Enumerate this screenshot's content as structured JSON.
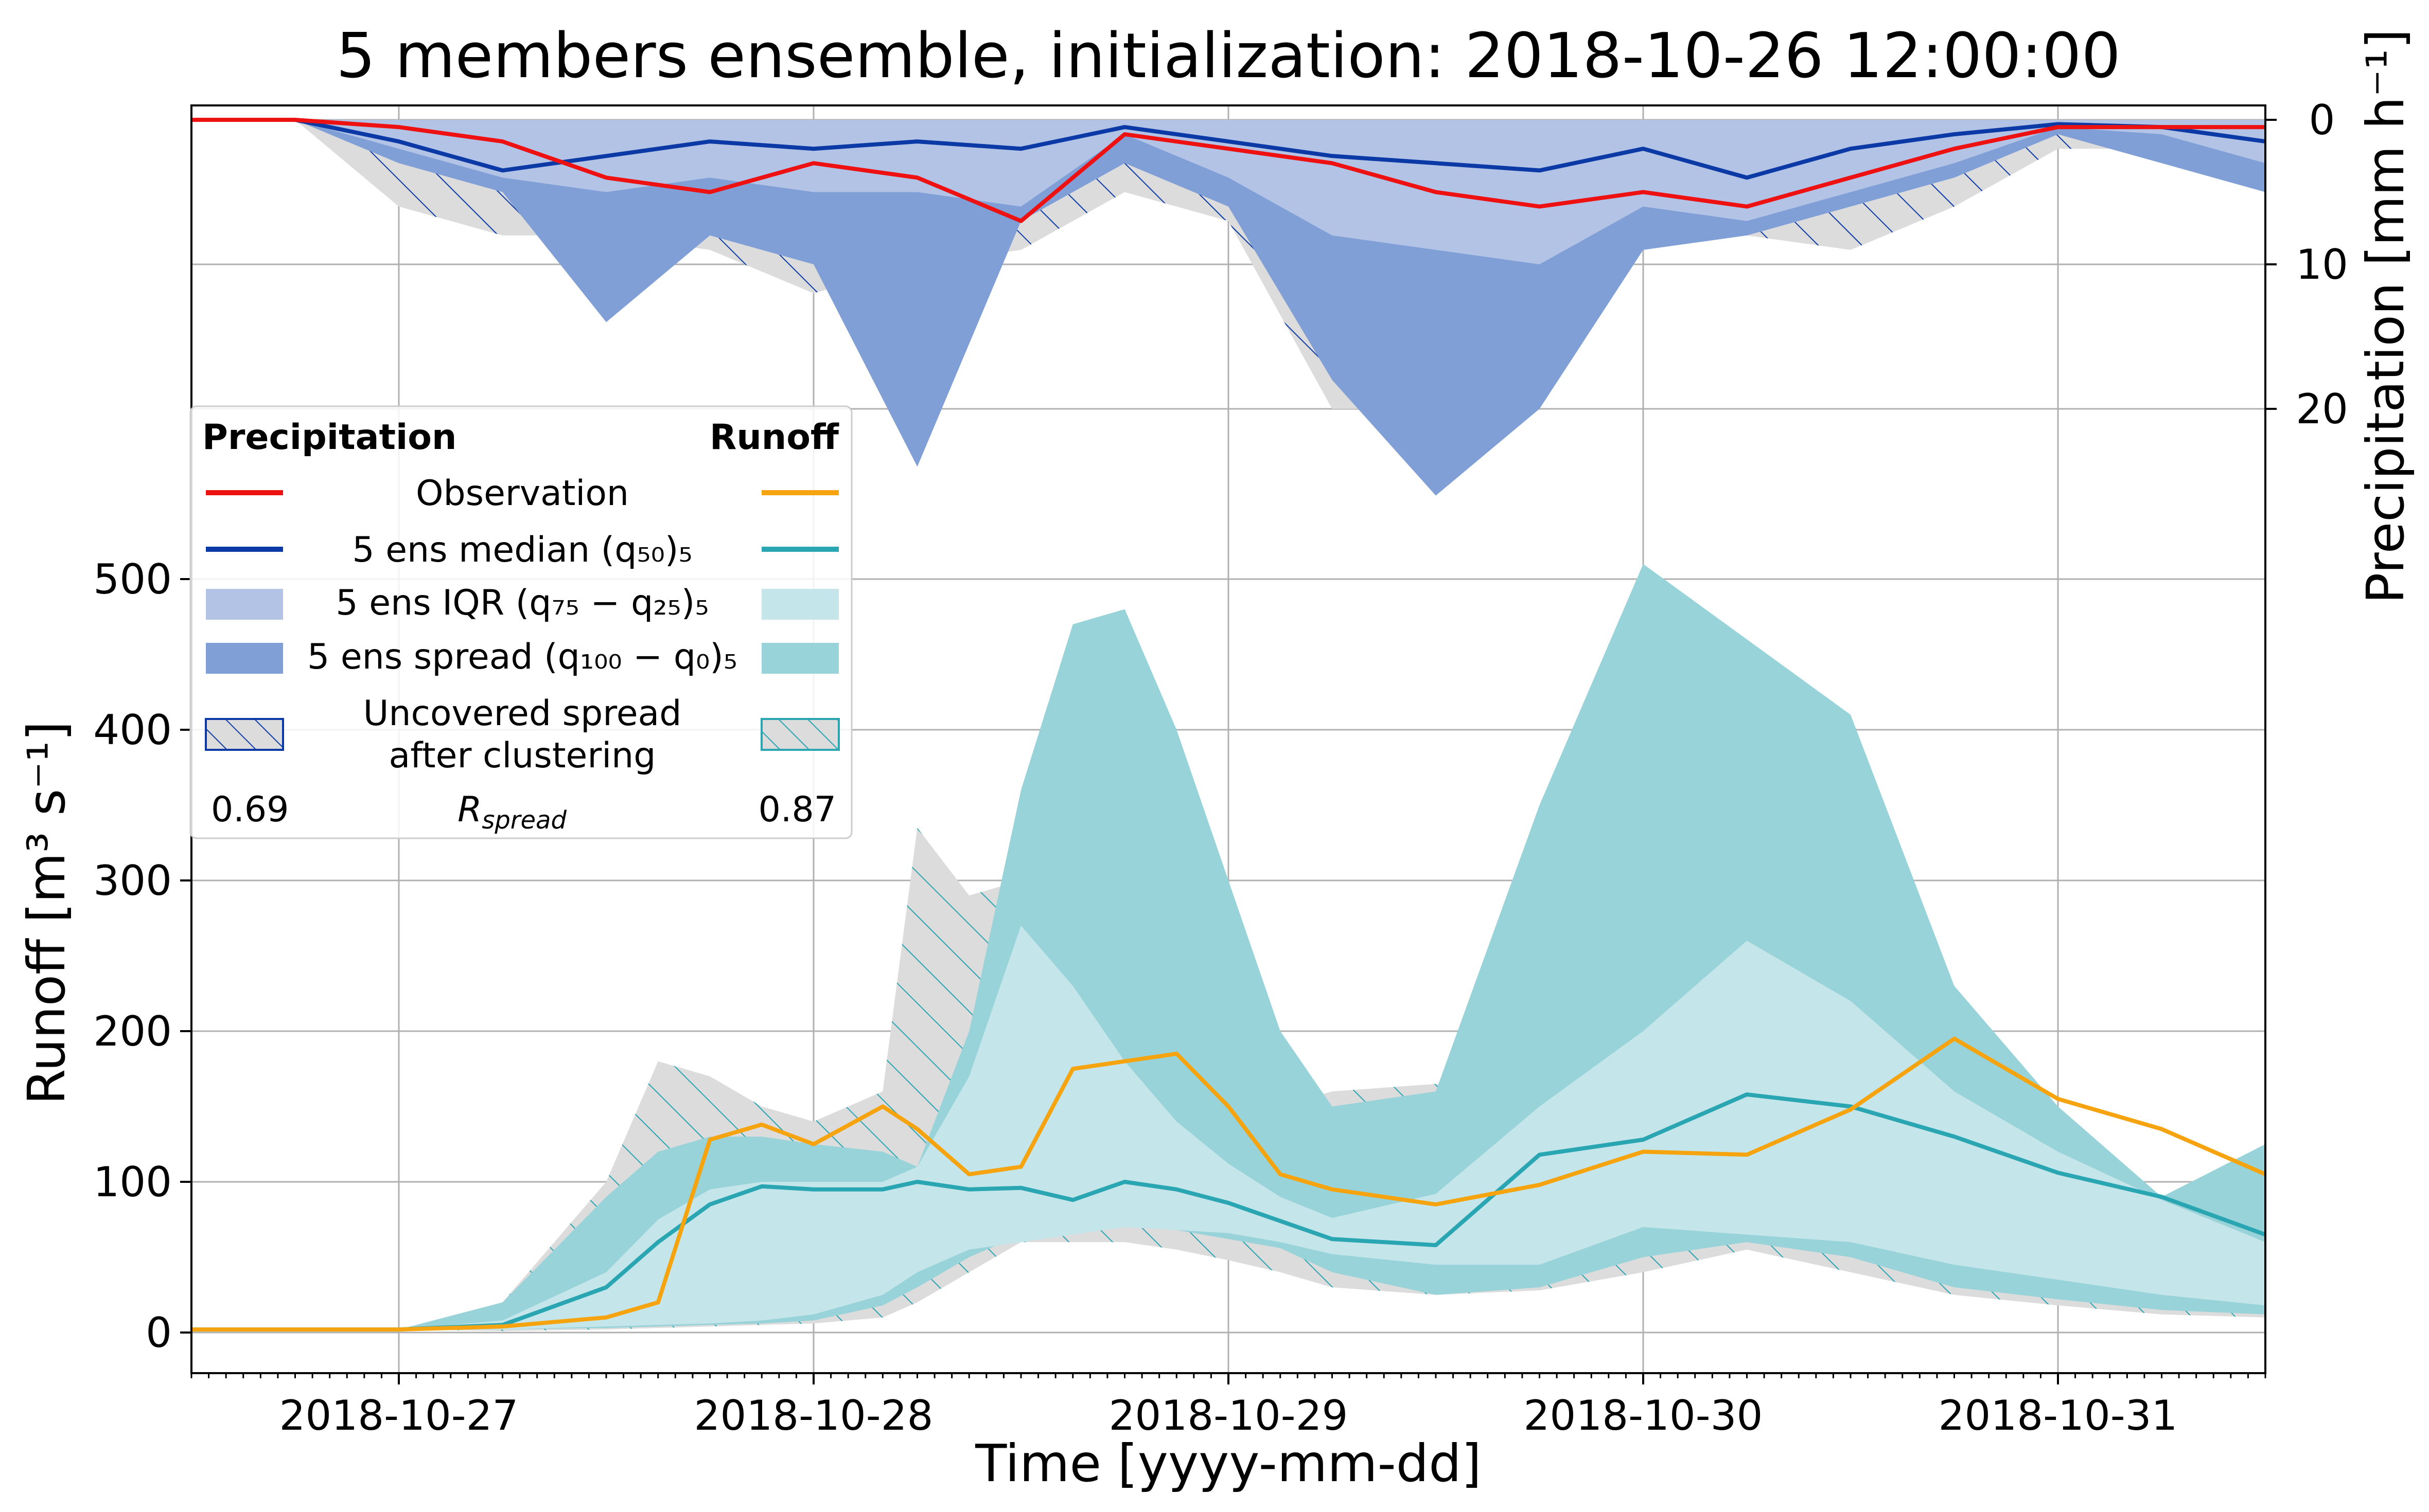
{
  "chart_data": {
    "type": "area",
    "title": "5 members ensemble, initialization: 2018-10-26 12:00:00",
    "xlabel": "Time [yyyy-mm-dd]",
    "ylabel": "Runoff [m$^3$ s$^{-1}$]",
    "ylabel_display": "Runoff [m³ s⁻¹]",
    "ylabel_right": "Precipitation [mm h⁻¹]",
    "x_range": [
      "2018-10-26 12:00",
      "2018-10-31 12:00"
    ],
    "x_ticks": [
      "2018-10-27",
      "2018-10-28",
      "2018-10-29",
      "2018-10-30",
      "2018-10-31"
    ],
    "runoff_ylim": [
      -25,
      525
    ],
    "runoff_yticks": [
      0,
      100,
      200,
      300,
      400,
      500
    ],
    "precip_ylim_inverted": [
      -1.5,
      20
    ],
    "precip_yticks": [
      0,
      10,
      20
    ],
    "grid": true,
    "legend": {
      "placement": "left",
      "col_header_left": "Precipitation",
      "col_header_right": "Runoff",
      "rows": [
        "Observation",
        "5 ens median $(q_{50})_5$",
        "5 ens IQR $(q_{75}-q_{25})_5$",
        "5 ens spread $(q_{100}-q_0)_5$",
        "Uncovered spread after clustering"
      ],
      "rows_display": [
        "Observation",
        "5 ens median (q₅₀)₅",
        "5 ens IQR (q₇₅ − q₂₅)₅",
        "5 ens spread (q₁₀₀ − q₀)₅",
        "Uncovered spread\nafter clustering"
      ],
      "r_spread_label": "R_spread",
      "r_spread_left": "0.69",
      "r_spread_right": "0.87"
    },
    "colors": {
      "precip_obs": "#ee1111",
      "precip_median": "#0b3aa6",
      "precip_iqr": "#b3c3e6",
      "precip_spread": "#7f9fd6",
      "runoff_obs": "#f5a40f",
      "runoff_median": "#2aa6b2",
      "runoff_iqr": "#c4e6ea",
      "runoff_spread": "#97d3d9",
      "uncovered_fill": "#dcdcdc"
    },
    "precip_hours": [
      0,
      6,
      12,
      18,
      24,
      30,
      36,
      42,
      48,
      54,
      60,
      66,
      72,
      78,
      84,
      90,
      96,
      102,
      108,
      114,
      120
    ],
    "precip": {
      "observation": [
        0,
        0,
        0.5,
        1.5,
        4,
        5,
        3,
        4,
        7,
        1,
        2,
        3,
        5,
        6,
        5,
        6,
        4,
        2,
        0.5,
        0.5,
        0.5
      ],
      "median": [
        0,
        0,
        1.5,
        3.5,
        2.5,
        1.5,
        2,
        1.5,
        2,
        0.5,
        1.5,
        2.5,
        3,
        3.5,
        2,
        4,
        2,
        1,
        0.3,
        0.5,
        1.5
      ],
      "iqr_upper": [
        0,
        0,
        2,
        4,
        5,
        4,
        5,
        5,
        6,
        1,
        4,
        8,
        9,
        10,
        6,
        7,
        5,
        3,
        0.5,
        1,
        3
      ],
      "spread_upper": [
        0,
        0,
        3,
        5,
        14,
        8,
        10,
        24,
        7,
        3,
        6,
        18,
        26,
        20,
        9,
        8,
        6,
        4,
        1,
        3,
        5
      ],
      "uncovered_upper": [
        0,
        0,
        6,
        8,
        8,
        9,
        12,
        10,
        9,
        5,
        7,
        20,
        20,
        9,
        9,
        8,
        9,
        6,
        2,
        2,
        2
      ]
    },
    "runoff_hours": [
      0,
      6,
      12,
      18,
      24,
      27,
      30,
      33,
      36,
      40,
      42,
      45,
      48,
      51,
      54,
      57,
      60,
      63,
      66,
      72,
      78,
      84,
      90,
      96,
      102,
      108,
      114,
      120
    ],
    "runoff": {
      "observation": [
        2,
        2,
        2,
        4,
        10,
        20,
        128,
        138,
        125,
        150,
        135,
        105,
        110,
        175,
        180,
        185,
        150,
        105,
        95,
        85,
        98,
        120,
        118,
        148,
        195,
        155,
        135,
        105
      ],
      "median": [
        2,
        2,
        2,
        5,
        30,
        60,
        85,
        97,
        95,
        95,
        100,
        95,
        96,
        88,
        100,
        95,
        86,
        74,
        62,
        58,
        118,
        128,
        158,
        150,
        130,
        106,
        90,
        65
      ],
      "iqr_lower": [
        2,
        2,
        2,
        2,
        4,
        5,
        6,
        8,
        12,
        25,
        40,
        55,
        60,
        65,
        70,
        68,
        66,
        60,
        52,
        45,
        45,
        70,
        65,
        60,
        45,
        35,
        25,
        18
      ],
      "iqr_upper": [
        2,
        2,
        2,
        8,
        40,
        75,
        95,
        100,
        100,
        100,
        110,
        170,
        270,
        230,
        180,
        140,
        112,
        90,
        76,
        92,
        150,
        200,
        260,
        220,
        160,
        120,
        88,
        60
      ],
      "spread_lower": [
        2,
        2,
        2,
        2,
        3,
        4,
        5,
        6,
        8,
        18,
        30,
        50,
        65,
        68,
        72,
        68,
        62,
        56,
        40,
        25,
        30,
        50,
        60,
        50,
        30,
        22,
        15,
        12
      ],
      "spread_upper": [
        2,
        2,
        2,
        20,
        90,
        120,
        130,
        130,
        125,
        120,
        110,
        200,
        360,
        470,
        480,
        400,
        300,
        200,
        150,
        160,
        350,
        510,
        460,
        410,
        230,
        150,
        90,
        125
      ],
      "uncovered_lower": [
        2,
        2,
        2,
        1,
        2,
        3,
        4,
        5,
        6,
        10,
        20,
        40,
        60,
        60,
        60,
        55,
        48,
        40,
        30,
        25,
        28,
        40,
        55,
        40,
        25,
        18,
        12,
        10
      ],
      "uncovered_upper": [
        2,
        2,
        2,
        20,
        100,
        180,
        170,
        150,
        140,
        160,
        335,
        290,
        300,
        250,
        200,
        160,
        150,
        150,
        160,
        165,
        150,
        130,
        150,
        140,
        120,
        100,
        80,
        60
      ]
    }
  }
}
